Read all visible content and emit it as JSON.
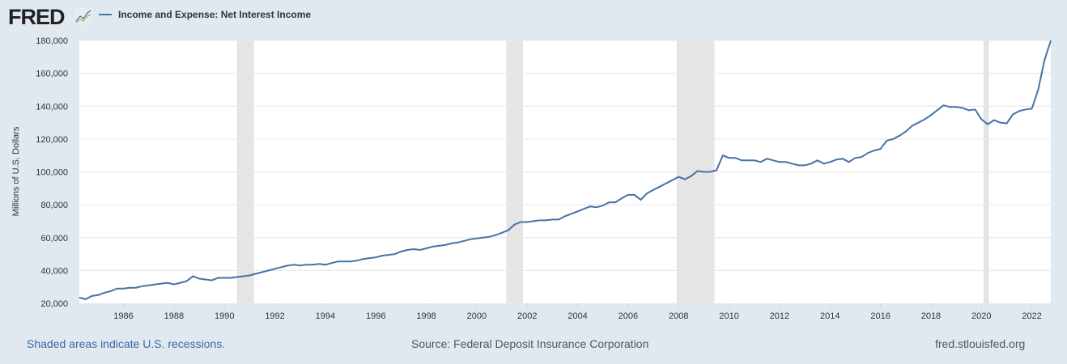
{
  "header": {
    "logo": "FRED",
    "legend_label": "Income and Expense: Net Interest Income"
  },
  "footer": {
    "recession_note": "Shaded areas indicate U.S. recessions.",
    "source": "Source: Federal Deposit Insurance Corporation",
    "site": "fred.stlouisfed.org"
  },
  "colors": {
    "line": "#4572a7",
    "recession": "#e5e5e5",
    "background": "#e1e9f0",
    "link": "#3b67a8"
  },
  "chart_data": {
    "type": "line",
    "title": "Income and Expense: Net Interest Income",
    "xlabel": "",
    "ylabel": "Millions of U.S. Dollars",
    "ylim": [
      20000,
      180000
    ],
    "xlim": [
      1984.25,
      2022.75
    ],
    "yticks": [
      20000,
      40000,
      60000,
      80000,
      100000,
      120000,
      140000,
      160000,
      180000
    ],
    "ytick_labels": [
      "20,000",
      "40,000",
      "60,000",
      "80,000",
      "100,000",
      "120,000",
      "140,000",
      "160,000",
      "180,000"
    ],
    "xticks": [
      1986,
      1988,
      1990,
      1992,
      1994,
      1996,
      1998,
      2000,
      2002,
      2004,
      2006,
      2008,
      2010,
      2012,
      2014,
      2016,
      2018,
      2020,
      2022
    ],
    "grid": true,
    "frequency": "quarterly",
    "start": "1984 Q2",
    "recessions": [
      [
        1990.5,
        1991.17
      ],
      [
        2001.17,
        2001.83
      ],
      [
        2007.92,
        2009.42
      ],
      [
        2020.08,
        2020.3
      ]
    ],
    "series": [
      {
        "name": "Income and Expense: Net Interest Income",
        "values": [
          23500,
          22500,
          24500,
          25000,
          26500,
          27500,
          29000,
          29000,
          29500,
          29500,
          30500,
          31000,
          31500,
          32000,
          32500,
          31500,
          32500,
          33500,
          36500,
          35000,
          34500,
          34000,
          35500,
          35500,
          35500,
          36000,
          36500,
          37000,
          38000,
          39000,
          40000,
          41000,
          42000,
          43000,
          43500,
          43000,
          43500,
          43500,
          44000,
          43500,
          44500,
          45500,
          45500,
          45500,
          46000,
          47000,
          47500,
          48000,
          49000,
          49500,
          50000,
          51500,
          52500,
          53000,
          52500,
          53500,
          54500,
          55000,
          55500,
          56500,
          57000,
          58000,
          59000,
          59500,
          60000,
          60500,
          61500,
          63000,
          64500,
          68000,
          69500,
          69500,
          70000,
          70500,
          70500,
          71000,
          71000,
          73000,
          74500,
          76000,
          77500,
          79000,
          78500,
          79500,
          81500,
          81500,
          84000,
          86000,
          86000,
          83000,
          87000,
          89000,
          91000,
          93000,
          95000,
          97000,
          95500,
          97500,
          100500,
          100000,
          100000,
          101000,
          110000,
          108500,
          108500,
          107000,
          107000,
          107000,
          106000,
          108000,
          107000,
          106000,
          106000,
          105000,
          104000,
          104000,
          105000,
          107000,
          105000,
          106000,
          107500,
          108000,
          106000,
          108500,
          109000,
          111500,
          113000,
          114000,
          119000,
          120000,
          122000,
          124500,
          128000,
          130000,
          132000,
          134500,
          137500,
          140500,
          139500,
          139500,
          139000,
          137500,
          138000,
          132000,
          129000,
          131500,
          130000,
          129500,
          135000,
          137000,
          138000,
          138500,
          150000,
          168000,
          180000
        ]
      }
    ]
  }
}
